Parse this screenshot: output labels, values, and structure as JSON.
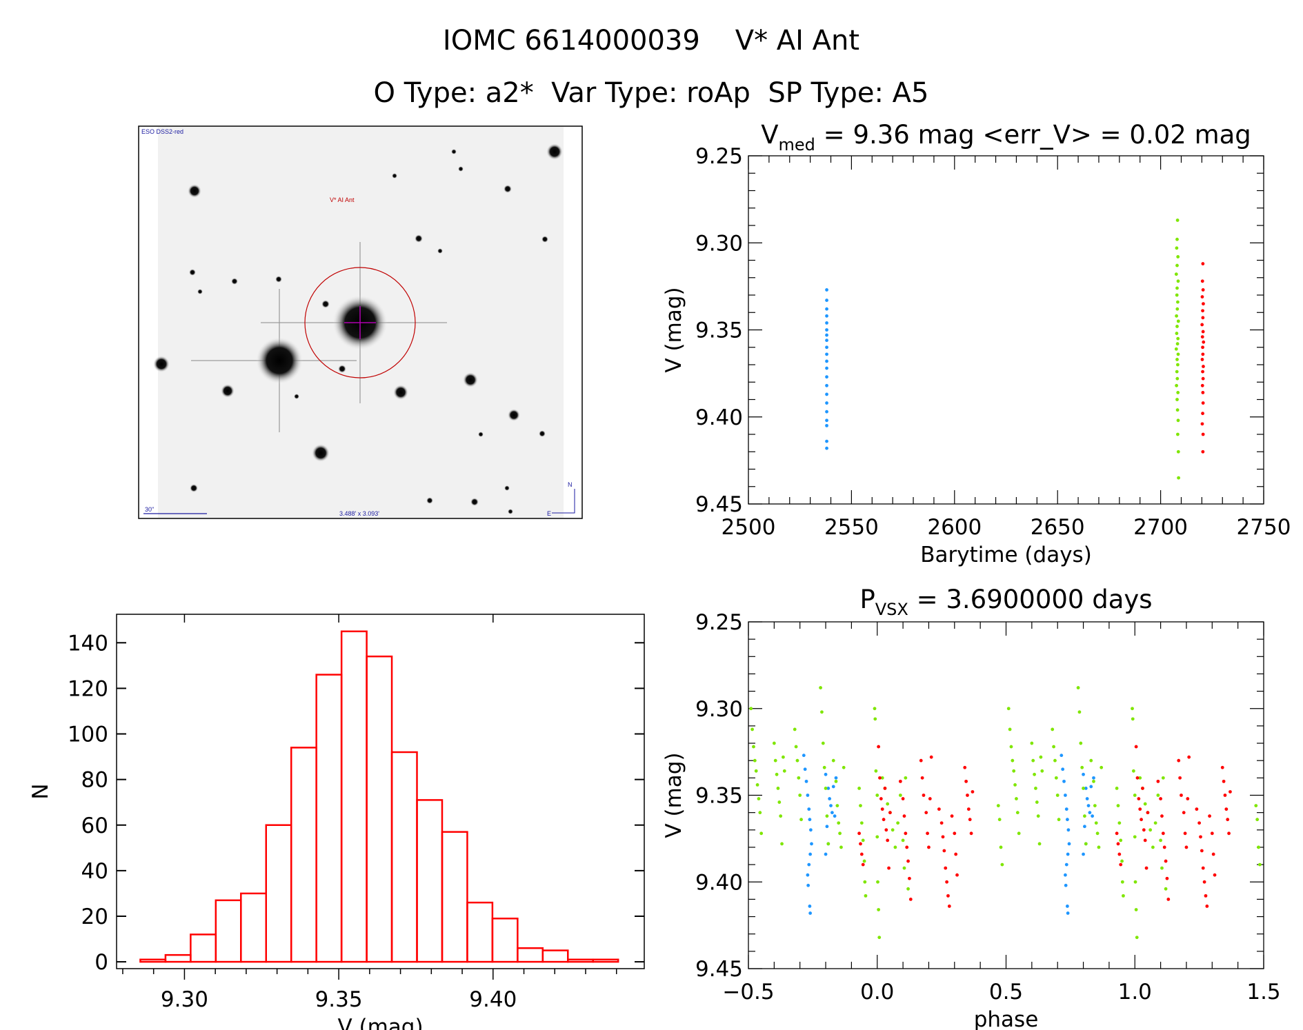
{
  "header": {
    "title_line1": "IOMC 6614000039    V* AI Ant",
    "title_line2": "O Type: a2*  Var Type: roAp  SP Type: A5"
  },
  "sky_image": {
    "survey_label": "ESO DSS2-red",
    "target_label": "V* AI Ant",
    "scale_label": "30\"",
    "field_label": "3.488' x 3.093'",
    "north_label": "N",
    "east_label": "E",
    "circle_color": "#c00000",
    "crosshair_color": "#b000b0",
    "text_color": "#1a1aa0"
  },
  "colors": {
    "series_a": "#1e96ff",
    "series_b": "#7fe600",
    "series_c": "#ff0000",
    "hist": "#ff0000"
  },
  "chart_data": [
    {
      "type": "scatter",
      "title_main": "V",
      "title_sub": "med",
      "title_rest": " = 9.36 mag <err_V> = 0.02 mag",
      "xlabel": "Barytime (days)",
      "ylabel": "V (mag)",
      "xlim": [
        2500,
        2750
      ],
      "ylim": [
        9.45,
        9.25
      ],
      "xticks": [
        "2500",
        "2550",
        "2600",
        "2650",
        "2700",
        "2750"
      ],
      "yticks": [
        "9.25",
        "9.30",
        "9.35",
        "9.40",
        "9.45"
      ],
      "series": [
        {
          "color": "#1e96ff",
          "points": [
            [
              2538,
              9.327
            ],
            [
              2538,
              9.333
            ],
            [
              2538,
              9.338
            ],
            [
              2538,
              9.342
            ],
            [
              2538,
              9.346
            ],
            [
              2538,
              9.35
            ],
            [
              2538,
              9.353
            ],
            [
              2538,
              9.356
            ],
            [
              2538,
              9.36
            ],
            [
              2538,
              9.364
            ],
            [
              2538,
              9.368
            ],
            [
              2538,
              9.372
            ],
            [
              2538,
              9.377
            ],
            [
              2538,
              9.382
            ],
            [
              2538,
              9.387
            ],
            [
              2538,
              9.392
            ],
            [
              2538,
              9.397
            ],
            [
              2538,
              9.402
            ],
            [
              2538,
              9.405
            ],
            [
              2538,
              9.414
            ],
            [
              2538,
              9.418
            ]
          ]
        },
        {
          "color": "#7fe600",
          "points": [
            [
              2708.2,
              9.287
            ],
            [
              2708,
              9.298
            ],
            [
              2707.8,
              9.303
            ],
            [
              2708.4,
              9.308
            ],
            [
              2708,
              9.313
            ],
            [
              2707.6,
              9.318
            ],
            [
              2708.5,
              9.322
            ],
            [
              2708,
              9.326
            ],
            [
              2707.9,
              9.33
            ],
            [
              2708.3,
              9.334
            ],
            [
              2708.1,
              9.338
            ],
            [
              2707.7,
              9.342
            ],
            [
              2708.6,
              9.345
            ],
            [
              2708,
              9.348
            ],
            [
              2707.8,
              9.352
            ],
            [
              2708.4,
              9.355
            ],
            [
              2708.2,
              9.358
            ],
            [
              2707.6,
              9.361
            ],
            [
              2708.5,
              9.364
            ],
            [
              2708,
              9.367
            ],
            [
              2708.3,
              9.37
            ],
            [
              2707.9,
              9.374
            ],
            [
              2708.1,
              9.378
            ],
            [
              2707.7,
              9.382
            ],
            [
              2708.4,
              9.386
            ],
            [
              2708,
              9.39
            ],
            [
              2708.2,
              9.396
            ],
            [
              2708.5,
              9.402
            ],
            [
              2708.3,
              9.41
            ],
            [
              2708.6,
              9.42
            ],
            [
              2708.7,
              9.435
            ]
          ]
        },
        {
          "color": "#ff0000",
          "points": [
            [
              2720.5,
              9.312
            ],
            [
              2720.3,
              9.322
            ],
            [
              2720.6,
              9.327
            ],
            [
              2720.2,
              9.331
            ],
            [
              2720.7,
              9.335
            ],
            [
              2720.4,
              9.339
            ],
            [
              2720.5,
              9.343
            ],
            [
              2720.1,
              9.347
            ],
            [
              2720.6,
              9.351
            ],
            [
              2720.3,
              9.354
            ],
            [
              2720.8,
              9.357
            ],
            [
              2720.4,
              9.36
            ],
            [
              2720.5,
              9.364
            ],
            [
              2720.2,
              9.367
            ],
            [
              2720.7,
              9.371
            ],
            [
              2720.4,
              9.374
            ],
            [
              2720.6,
              9.378
            ],
            [
              2720.3,
              9.382
            ],
            [
              2720.5,
              9.386
            ],
            [
              2720.6,
              9.392
            ],
            [
              2720.4,
              9.398
            ],
            [
              2720.2,
              9.404
            ],
            [
              2720.6,
              9.41
            ],
            [
              2720.5,
              9.42
            ]
          ]
        }
      ]
    },
    {
      "type": "bar",
      "xlabel": "V (mag)",
      "ylabel": "N",
      "xlim": [
        9.278,
        9.449
      ],
      "ylim": [
        -3,
        152.5
      ],
      "xticks": [
        "9.30",
        "9.35",
        "9.40"
      ],
      "yticks": [
        "0",
        "20",
        "40",
        "60",
        "80",
        "100",
        "120",
        "140"
      ],
      "bin_start": 9.2857,
      "bin_width": 0.00815,
      "values": [
        1,
        3,
        12,
        27,
        30,
        60,
        94,
        126,
        145,
        134,
        92,
        71,
        57,
        26,
        19,
        6,
        5,
        1,
        1
      ]
    },
    {
      "type": "scatter",
      "title_main": "P",
      "title_sub": "VSX",
      "title_rest": " = 3.6900000 days",
      "xlabel": "phase",
      "ylabel": "V (mag)",
      "xlim": [
        -0.5,
        1.5
      ],
      "ylim": [
        9.45,
        9.25
      ],
      "xticks": [
        "−0.5",
        "0.0",
        "0.5",
        "1.0",
        "1.5"
      ],
      "yticks": [
        "9.25",
        "9.30",
        "9.35",
        "9.40",
        "9.45"
      ],
      "phase_repeat": 1,
      "series": [
        {
          "color": "#1e96ff",
          "points": [
            [
              -0.285,
              9.327
            ],
            [
              -0.28,
              9.335
            ],
            [
              -0.275,
              9.342
            ],
            [
              -0.27,
              9.35
            ],
            [
              -0.265,
              9.358
            ],
            [
              -0.262,
              9.364
            ],
            [
              -0.258,
              9.37
            ],
            [
              -0.255,
              9.378
            ],
            [
              -0.26,
              9.384
            ],
            [
              -0.265,
              9.39
            ],
            [
              -0.27,
              9.396
            ],
            [
              -0.268,
              9.402
            ],
            [
              -0.262,
              9.414
            ],
            [
              -0.26,
              9.418
            ],
            [
              -0.2,
              9.338
            ],
            [
              -0.19,
              9.346
            ],
            [
              -0.185,
              9.352
            ],
            [
              -0.18,
              9.356
            ],
            [
              -0.175,
              9.36
            ],
            [
              -0.17,
              9.345
            ],
            [
              -0.165,
              9.362
            ],
            [
              -0.195,
              9.368
            ],
            [
              -0.19,
              9.378
            ],
            [
              -0.16,
              9.34
            ],
            [
              -0.2,
              9.384
            ]
          ]
        },
        {
          "color": "#7fe600",
          "points": [
            [
              -0.49,
              9.3
            ],
            [
              -0.485,
              9.312
            ],
            [
              -0.48,
              9.322
            ],
            [
              -0.475,
              9.33
            ],
            [
              -0.47,
              9.336
            ],
            [
              -0.465,
              9.344
            ],
            [
              -0.46,
              9.352
            ],
            [
              -0.455,
              9.36
            ],
            [
              -0.45,
              9.372
            ],
            [
              -0.4,
              9.32
            ],
            [
              -0.395,
              9.33
            ],
            [
              -0.39,
              9.338
            ],
            [
              -0.385,
              9.346
            ],
            [
              -0.38,
              9.354
            ],
            [
              -0.375,
              9.362
            ],
            [
              -0.37,
              9.378
            ],
            [
              -0.365,
              9.328
            ],
            [
              -0.36,
              9.336
            ],
            [
              -0.32,
              9.312
            ],
            [
              -0.315,
              9.322
            ],
            [
              -0.31,
              9.33
            ],
            [
              -0.305,
              9.34
            ],
            [
              -0.3,
              9.35
            ],
            [
              -0.295,
              9.364
            ],
            [
              -0.22,
              9.288
            ],
            [
              -0.215,
              9.302
            ],
            [
              -0.21,
              9.32
            ],
            [
              -0.205,
              9.334
            ],
            [
              -0.2,
              9.346
            ],
            [
              -0.195,
              9.362
            ],
            [
              -0.19,
              9.378
            ],
            [
              -0.17,
              9.33
            ],
            [
              -0.16,
              9.342
            ],
            [
              -0.155,
              9.356
            ],
            [
              -0.15,
              9.366
            ],
            [
              -0.145,
              9.372
            ],
            [
              -0.14,
              9.38
            ],
            [
              -0.13,
              9.334
            ],
            [
              -0.07,
              9.346
            ],
            [
              -0.065,
              9.356
            ],
            [
              -0.06,
              9.366
            ],
            [
              -0.055,
              9.376
            ],
            [
              -0.05,
              9.388
            ],
            [
              -0.048,
              9.4
            ],
            [
              -0.045,
              9.408
            ],
            [
              -0.01,
              9.3
            ],
            [
              -0.008,
              9.306
            ],
            [
              -0.005,
              9.336
            ],
            [
              0.0,
              9.35
            ],
            [
              0.0,
              9.374
            ],
            [
              0.002,
              9.4
            ],
            [
              0.005,
              9.416
            ],
            [
              0.008,
              9.432
            ],
            [
              0.02,
              9.34
            ],
            [
              0.03,
              9.346
            ],
            [
              0.04,
              9.355
            ],
            [
              0.05,
              9.36
            ],
            [
              0.06,
              9.37
            ],
            [
              0.07,
              9.38
            ],
            [
              0.08,
              9.366
            ],
            [
              0.09,
              9.35
            ],
            [
              0.1,
              9.376
            ],
            [
              0.105,
              9.392
            ],
            [
              0.11,
              9.34
            ],
            [
              0.12,
              9.404
            ],
            [
              0.47,
              9.356
            ],
            [
              0.475,
              9.364
            ],
            [
              0.48,
              9.38
            ],
            [
              0.485,
              9.39
            ]
          ]
        },
        {
          "color": "#ff0000",
          "points": [
            [
              -0.07,
              9.372
            ],
            [
              -0.065,
              9.378
            ],
            [
              -0.06,
              9.384
            ],
            [
              -0.055,
              9.39
            ],
            [
              0.005,
              9.322
            ],
            [
              0.01,
              9.34
            ],
            [
              0.015,
              9.352
            ],
            [
              0.02,
              9.358
            ],
            [
              0.025,
              9.364
            ],
            [
              0.03,
              9.346
            ],
            [
              0.035,
              9.37
            ],
            [
              0.04,
              9.376
            ],
            [
              0.045,
              9.392
            ],
            [
              0.05,
              9.36
            ],
            [
              0.09,
              9.342
            ],
            [
              0.1,
              9.352
            ],
            [
              0.105,
              9.362
            ],
            [
              0.11,
              9.372
            ],
            [
              0.115,
              9.38
            ],
            [
              0.12,
              9.388
            ],
            [
              0.125,
              9.398
            ],
            [
              0.13,
              9.41
            ],
            [
              0.17,
              9.33
            ],
            [
              0.175,
              9.34
            ],
            [
              0.18,
              9.35
            ],
            [
              0.19,
              9.36
            ],
            [
              0.195,
              9.372
            ],
            [
              0.2,
              9.38
            ],
            [
              0.205,
              9.352
            ],
            [
              0.21,
              9.328
            ],
            [
              0.24,
              9.358
            ],
            [
              0.25,
              9.366
            ],
            [
              0.255,
              9.374
            ],
            [
              0.26,
              9.382
            ],
            [
              0.265,
              9.392
            ],
            [
              0.27,
              9.4
            ],
            [
              0.275,
              9.408
            ],
            [
              0.28,
              9.414
            ],
            [
              0.29,
              9.362
            ],
            [
              0.3,
              9.372
            ],
            [
              0.305,
              9.384
            ],
            [
              0.31,
              9.396
            ],
            [
              0.34,
              9.334
            ],
            [
              0.345,
              9.342
            ],
            [
              0.35,
              9.35
            ],
            [
              0.355,
              9.358
            ],
            [
              0.36,
              9.364
            ],
            [
              0.365,
              9.372
            ],
            [
              0.37,
              9.348
            ]
          ]
        }
      ]
    }
  ]
}
